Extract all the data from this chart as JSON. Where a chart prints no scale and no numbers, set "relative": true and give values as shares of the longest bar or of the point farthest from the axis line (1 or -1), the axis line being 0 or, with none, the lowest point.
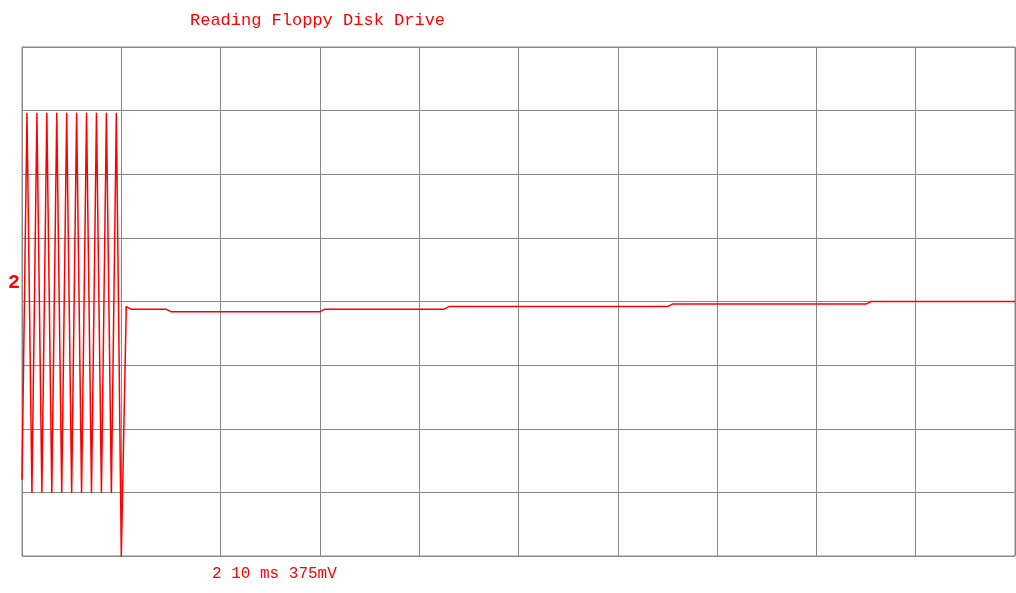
{
  "chart_data": {
    "type": "line",
    "title": "Reading Floppy Disk Drive",
    "relative": true,
    "grid": true,
    "line_style": "solid",
    "annotations": [
      "2",
      "2 10 ms 375mV"
    ],
    "categories": [
      null,
      null,
      null,
      null,
      null,
      null,
      null,
      null,
      null,
      null,
      null,
      null,
      null,
      null,
      null,
      null,
      null,
      null,
      null,
      null,
      null,
      null,
      null,
      null,
      null,
      null,
      null,
      null,
      null,
      null,
      null,
      null,
      null,
      null,
      null,
      null,
      null,
      null,
      null,
      null,
      null,
      null,
      null,
      null,
      null,
      null,
      null,
      null,
      null,
      null,
      null,
      null,
      null,
      null,
      null,
      null,
      null,
      null,
      null,
      null,
      null,
      null,
      null,
      null,
      null,
      null,
      null,
      null,
      null,
      null,
      null,
      null,
      null,
      null,
      null,
      null,
      null,
      null,
      null,
      null,
      null,
      null,
      null,
      null,
      null,
      null,
      null,
      null,
      null,
      null,
      null,
      null,
      null,
      null,
      null,
      null,
      null,
      null,
      null,
      null,
      null,
      null,
      null,
      null,
      null,
      null,
      null,
      null,
      null,
      null,
      null,
      null,
      null,
      null,
      null,
      null,
      null,
      null,
      null,
      null,
      null,
      null,
      null,
      null,
      null,
      null,
      null,
      null,
      null,
      null,
      null,
      null,
      null,
      null,
      null,
      null,
      null,
      null,
      null,
      null,
      null,
      null,
      null,
      null,
      null,
      null,
      null,
      null,
      null,
      null,
      null,
      null,
      null,
      null,
      null,
      null,
      null,
      null,
      null,
      null,
      null,
      null,
      null,
      null,
      null,
      null,
      null,
      null,
      null,
      null,
      null,
      null,
      null,
      null,
      null,
      null,
      null,
      null,
      null,
      null,
      null,
      null,
      null,
      null,
      null,
      null,
      null,
      null,
      null,
      null,
      null,
      null,
      null,
      null,
      null,
      null,
      null,
      null,
      null,
      null,
      null
    ],
    "series": [
      {
        "color": "#ff0000",
        "values": [
          -0.7,
          0.74,
          -0.75,
          0.74,
          -0.75,
          0.74,
          -0.75,
          0.74,
          -0.75,
          0.74,
          -0.75,
          0.74,
          -0.75,
          0.74,
          -0.75,
          0.74,
          -0.75,
          0.74,
          -0.75,
          0.74,
          -1,
          -0.02,
          -0.03,
          -0.03,
          -0.03,
          -0.03,
          -0.03,
          -0.03,
          -0.03,
          -0.03,
          -0.04,
          -0.04,
          -0.04,
          -0.04,
          -0.04,
          -0.04,
          -0.04,
          -0.04,
          -0.04,
          -0.04,
          -0.04,
          -0.04,
          -0.04,
          -0.04,
          -0.04,
          -0.04,
          -0.04,
          -0.04,
          -0.04,
          -0.04,
          -0.04,
          -0.04,
          -0.04,
          -0.04,
          -0.04,
          -0.04,
          -0.04,
          -0.04,
          -0.04,
          -0.04,
          -0.04,
          -0.03,
          -0.03,
          -0.03,
          -0.03,
          -0.03,
          -0.03,
          -0.03,
          -0.03,
          -0.03,
          -0.03,
          -0.03,
          -0.03,
          -0.03,
          -0.03,
          -0.03,
          -0.03,
          -0.03,
          -0.03,
          -0.03,
          -0.03,
          -0.03,
          -0.03,
          -0.03,
          -0.03,
          -0.03,
          -0.02,
          -0.02,
          -0.02,
          -0.02,
          -0.02,
          -0.02,
          -0.02,
          -0.02,
          -0.02,
          -0.02,
          -0.02,
          -0.02,
          -0.02,
          -0.02,
          -0.02,
          -0.02,
          -0.02,
          -0.02,
          -0.02,
          -0.02,
          -0.02,
          -0.02,
          -0.02,
          -0.02,
          -0.02,
          -0.02,
          -0.02,
          -0.02,
          -0.02,
          -0.02,
          -0.02,
          -0.02,
          -0.02,
          -0.02,
          -0.02,
          -0.02,
          -0.02,
          -0.02,
          -0.02,
          -0.02,
          -0.02,
          -0.02,
          -0.02,
          -0.02,
          -0.02,
          -0.01,
          -0.01,
          -0.01,
          -0.01,
          -0.01,
          -0.01,
          -0.01,
          -0.01,
          -0.01,
          -0.01,
          -0.01,
          -0.01,
          -0.01,
          -0.01,
          -0.01,
          -0.01,
          -0.01,
          -0.01,
          -0.01,
          -0.01,
          -0.01,
          -0.01,
          -0.01,
          -0.01,
          -0.01,
          -0.01,
          -0.01,
          -0.01,
          -0.01,
          -0.01,
          -0.01,
          -0.01,
          -0.01,
          -0.01,
          -0.01,
          -0.01,
          -0.01,
          -0.01,
          -0.01,
          -0.01,
          0,
          0,
          0,
          0,
          0,
          0,
          0,
          0,
          0,
          0,
          0,
          0,
          0,
          0,
          0,
          0,
          0,
          0,
          0,
          0,
          0,
          0,
          0,
          0,
          0,
          0,
          0,
          0,
          0,
          0
        ]
      }
    ]
  }
}
